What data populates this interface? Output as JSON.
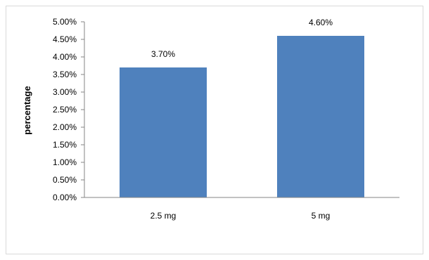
{
  "chart_data": {
    "type": "bar",
    "title": "",
    "xlabel": "",
    "ylabel": "percentage",
    "categories": [
      "2.5 mg",
      "5 mg"
    ],
    "values": [
      3.7,
      4.6
    ],
    "data_labels": [
      "3.70%",
      "4.60%"
    ],
    "ylim": [
      0,
      5
    ],
    "y_ticks": [
      {
        "value": 0,
        "label": "0.00%"
      },
      {
        "value": 0.5,
        "label": "0.50%"
      },
      {
        "value": 1,
        "label": "1.00%"
      },
      {
        "value": 1.5,
        "label": "1.50%"
      },
      {
        "value": 2,
        "label": "2.00%"
      },
      {
        "value": 2.5,
        "label": "2.50%"
      },
      {
        "value": 3,
        "label": "3.00%"
      },
      {
        "value": 3.5,
        "label": "3.50%"
      },
      {
        "value": 4,
        "label": "4.00%"
      },
      {
        "value": 4.5,
        "label": "4.50%"
      },
      {
        "value": 5,
        "label": "5.00%"
      }
    ],
    "grid": false,
    "legend": "none",
    "bar_color": "#4F81BD",
    "axis_color": "#868686"
  }
}
